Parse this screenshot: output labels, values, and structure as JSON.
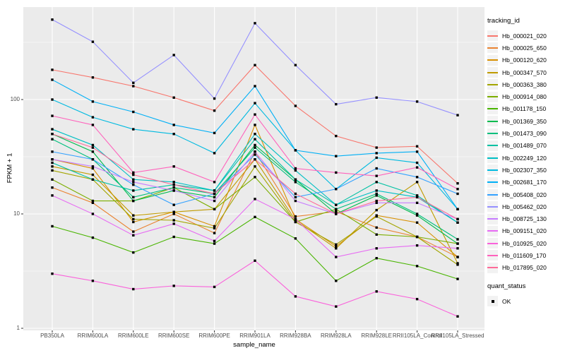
{
  "figure": {
    "background": "#FFFFFF",
    "panel_background": "#EBEBEB",
    "gridline_color": "#FFFFFF",
    "point_color": "#000000",
    "axis_text_color": "#4D4D4D"
  },
  "chart_data": {
    "type": "line",
    "title": "",
    "xlabel": "sample_name",
    "ylabel": "FPKM + 1",
    "y_scale": "log10",
    "y_ticks": [
      1,
      10,
      100
    ],
    "y_minor_ticks": [
      3.1623,
      31.623,
      316.23
    ],
    "ylim": [
      1,
      650
    ],
    "grid": true,
    "legend_position": "right",
    "point_shape": "black-square",
    "categories": [
      "PB350LA",
      "RRIM600LA",
      "RRIM600LE",
      "RRIM600SE",
      "RRIM600PE",
      "RRIM901LA",
      "RRIM928BA",
      "RRIM928LA",
      "RRIM928LE",
      "RRII105LA_Control",
      "RRII105LA_Stressed"
    ],
    "series": [
      {
        "name": "Hb_000021_020",
        "color": "#F8766D",
        "values": [
          182,
          156,
          131,
          104,
          80,
          200,
          88,
          48,
          38,
          39,
          18.5
        ]
      },
      {
        "name": "Hb_000025_650",
        "color": "#EA8331",
        "values": [
          17,
          12.5,
          7,
          10,
          6.8,
          35,
          9.5,
          10.5,
          7.6,
          6.3,
          4.2
        ]
      },
      {
        "name": "Hb_000120_620",
        "color": "#D89000",
        "values": [
          30,
          25,
          8.5,
          10.4,
          7.8,
          60,
          9,
          5.2,
          9.7,
          8.4,
          4.2
        ]
      },
      {
        "name": "Hb_000347_570",
        "color": "#C09B00",
        "values": [
          26,
          22,
          9.7,
          10.4,
          11,
          30,
          8.8,
          5,
          10.8,
          19,
          3.7
        ]
      },
      {
        "name": "Hb_000363_380",
        "color": "#A3A500",
        "values": [
          24,
          20,
          9,
          8.8,
          7.5,
          26,
          8.5,
          5.4,
          9.5,
          6.3,
          3.6
        ]
      },
      {
        "name": "Hb_000914_080",
        "color": "#7CAE00",
        "values": [
          20,
          13,
          13,
          17,
          11,
          21,
          8.5,
          11,
          6.6,
          6.3,
          5.5
        ]
      },
      {
        "name": "Hb_001178_150",
        "color": "#49B500",
        "values": [
          7.8,
          6.2,
          4.6,
          6.3,
          5.5,
          9.4,
          6.1,
          2.6,
          4.1,
          3.5,
          2.7
        ]
      },
      {
        "name": "Hb_001369_350",
        "color": "#00BB4E",
        "values": [
          50,
          35,
          13,
          16,
          14,
          40,
          20,
          10,
          14.5,
          9.7,
          5.5
        ]
      },
      {
        "name": "Hb_001473_090",
        "color": "#00BF7D",
        "values": [
          45,
          30,
          14,
          17,
          15,
          38,
          19,
          11,
          15,
          10,
          6
        ]
      },
      {
        "name": "Hb_001489_070",
        "color": "#00C1A3",
        "values": [
          28,
          20,
          16,
          18,
          16,
          45,
          20,
          12,
          19,
          14.5,
          8.4
        ]
      },
      {
        "name": "Hb_002249_120",
        "color": "#00BFC4",
        "values": [
          55,
          40,
          20,
          19,
          16,
          50,
          24,
          12,
          16,
          14,
          8.4
        ]
      },
      {
        "name": "Hb_002307_350",
        "color": "#00BAE0",
        "values": [
          100,
          70,
          55,
          50,
          34,
          93,
          36,
          16.5,
          31,
          28,
          11
        ]
      },
      {
        "name": "Hb_002681_170",
        "color": "#00B0F6",
        "values": [
          149,
          96,
          78,
          60,
          51,
          131,
          36,
          32,
          34,
          35,
          11
        ]
      },
      {
        "name": "Hb_005408_020",
        "color": "#35A2FF",
        "values": [
          35,
          30,
          18,
          12,
          15,
          33,
          14,
          16.5,
          25,
          21,
          15
        ]
      },
      {
        "name": "Hb_005462_020",
        "color": "#9590FF",
        "values": [
          500,
          320,
          140,
          245,
          102,
          465,
          200,
          91,
          104,
          96,
          73
        ]
      },
      {
        "name": "Hb_008725_130",
        "color": "#C77CFF",
        "values": [
          30,
          26,
          19,
          16,
          13,
          35,
          13,
          10,
          12.5,
          12.5,
          9
        ]
      },
      {
        "name": "Hb_009151_020",
        "color": "#E76BF3",
        "values": [
          14.5,
          10,
          6.5,
          8.2,
          5.8,
          13.5,
          9,
          4.2,
          5,
          5.3,
          5
        ]
      },
      {
        "name": "Hb_010925_020",
        "color": "#FA62DB",
        "values": [
          3,
          2.6,
          2.2,
          2.35,
          2.3,
          3.9,
          1.9,
          1.55,
          2.1,
          1.8,
          1.27
        ]
      },
      {
        "name": "Hb_011609_170",
        "color": "#FF62BC",
        "values": [
          72,
          60,
          23,
          26,
          19,
          74,
          25,
          23,
          21.5,
          25.5,
          16.5
        ]
      },
      {
        "name": "Hb_017895_020",
        "color": "#FF6A98",
        "values": [
          50,
          38,
          22,
          18,
          15,
          30,
          15,
          10,
          13,
          14,
          9
        ]
      }
    ]
  },
  "legend": {
    "title": "tracking_id"
  },
  "quant_legend": {
    "title": "quant_status",
    "items": [
      "OK"
    ]
  }
}
